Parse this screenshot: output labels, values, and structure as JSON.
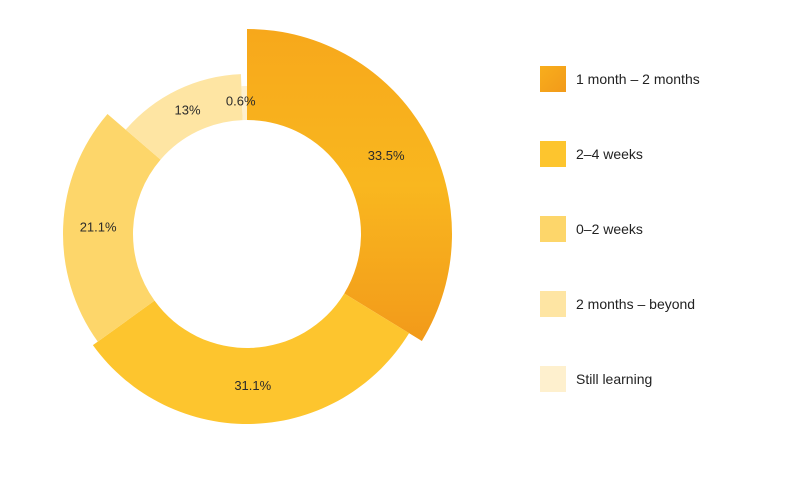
{
  "chart_data": {
    "type": "pie",
    "variant": "donut",
    "title": "",
    "categories": [
      "1 month – 2 months",
      "2–4 weeks",
      "0–2 weeks",
      "2 months – beyond",
      "Still learning"
    ],
    "values": [
      33.5,
      31.1,
      21.1,
      13,
      0.6
    ],
    "value_labels": [
      "33.5%",
      "31.1%",
      "21.1%",
      "13%",
      "0.6%"
    ],
    "colors": [
      "#F5A31A",
      "#FDC52E",
      "#FDD66A",
      "#FEE5A3",
      "#FEF0CE"
    ],
    "start_angle_deg": 0,
    "direction": "clockwise",
    "legend_position": "right"
  }
}
